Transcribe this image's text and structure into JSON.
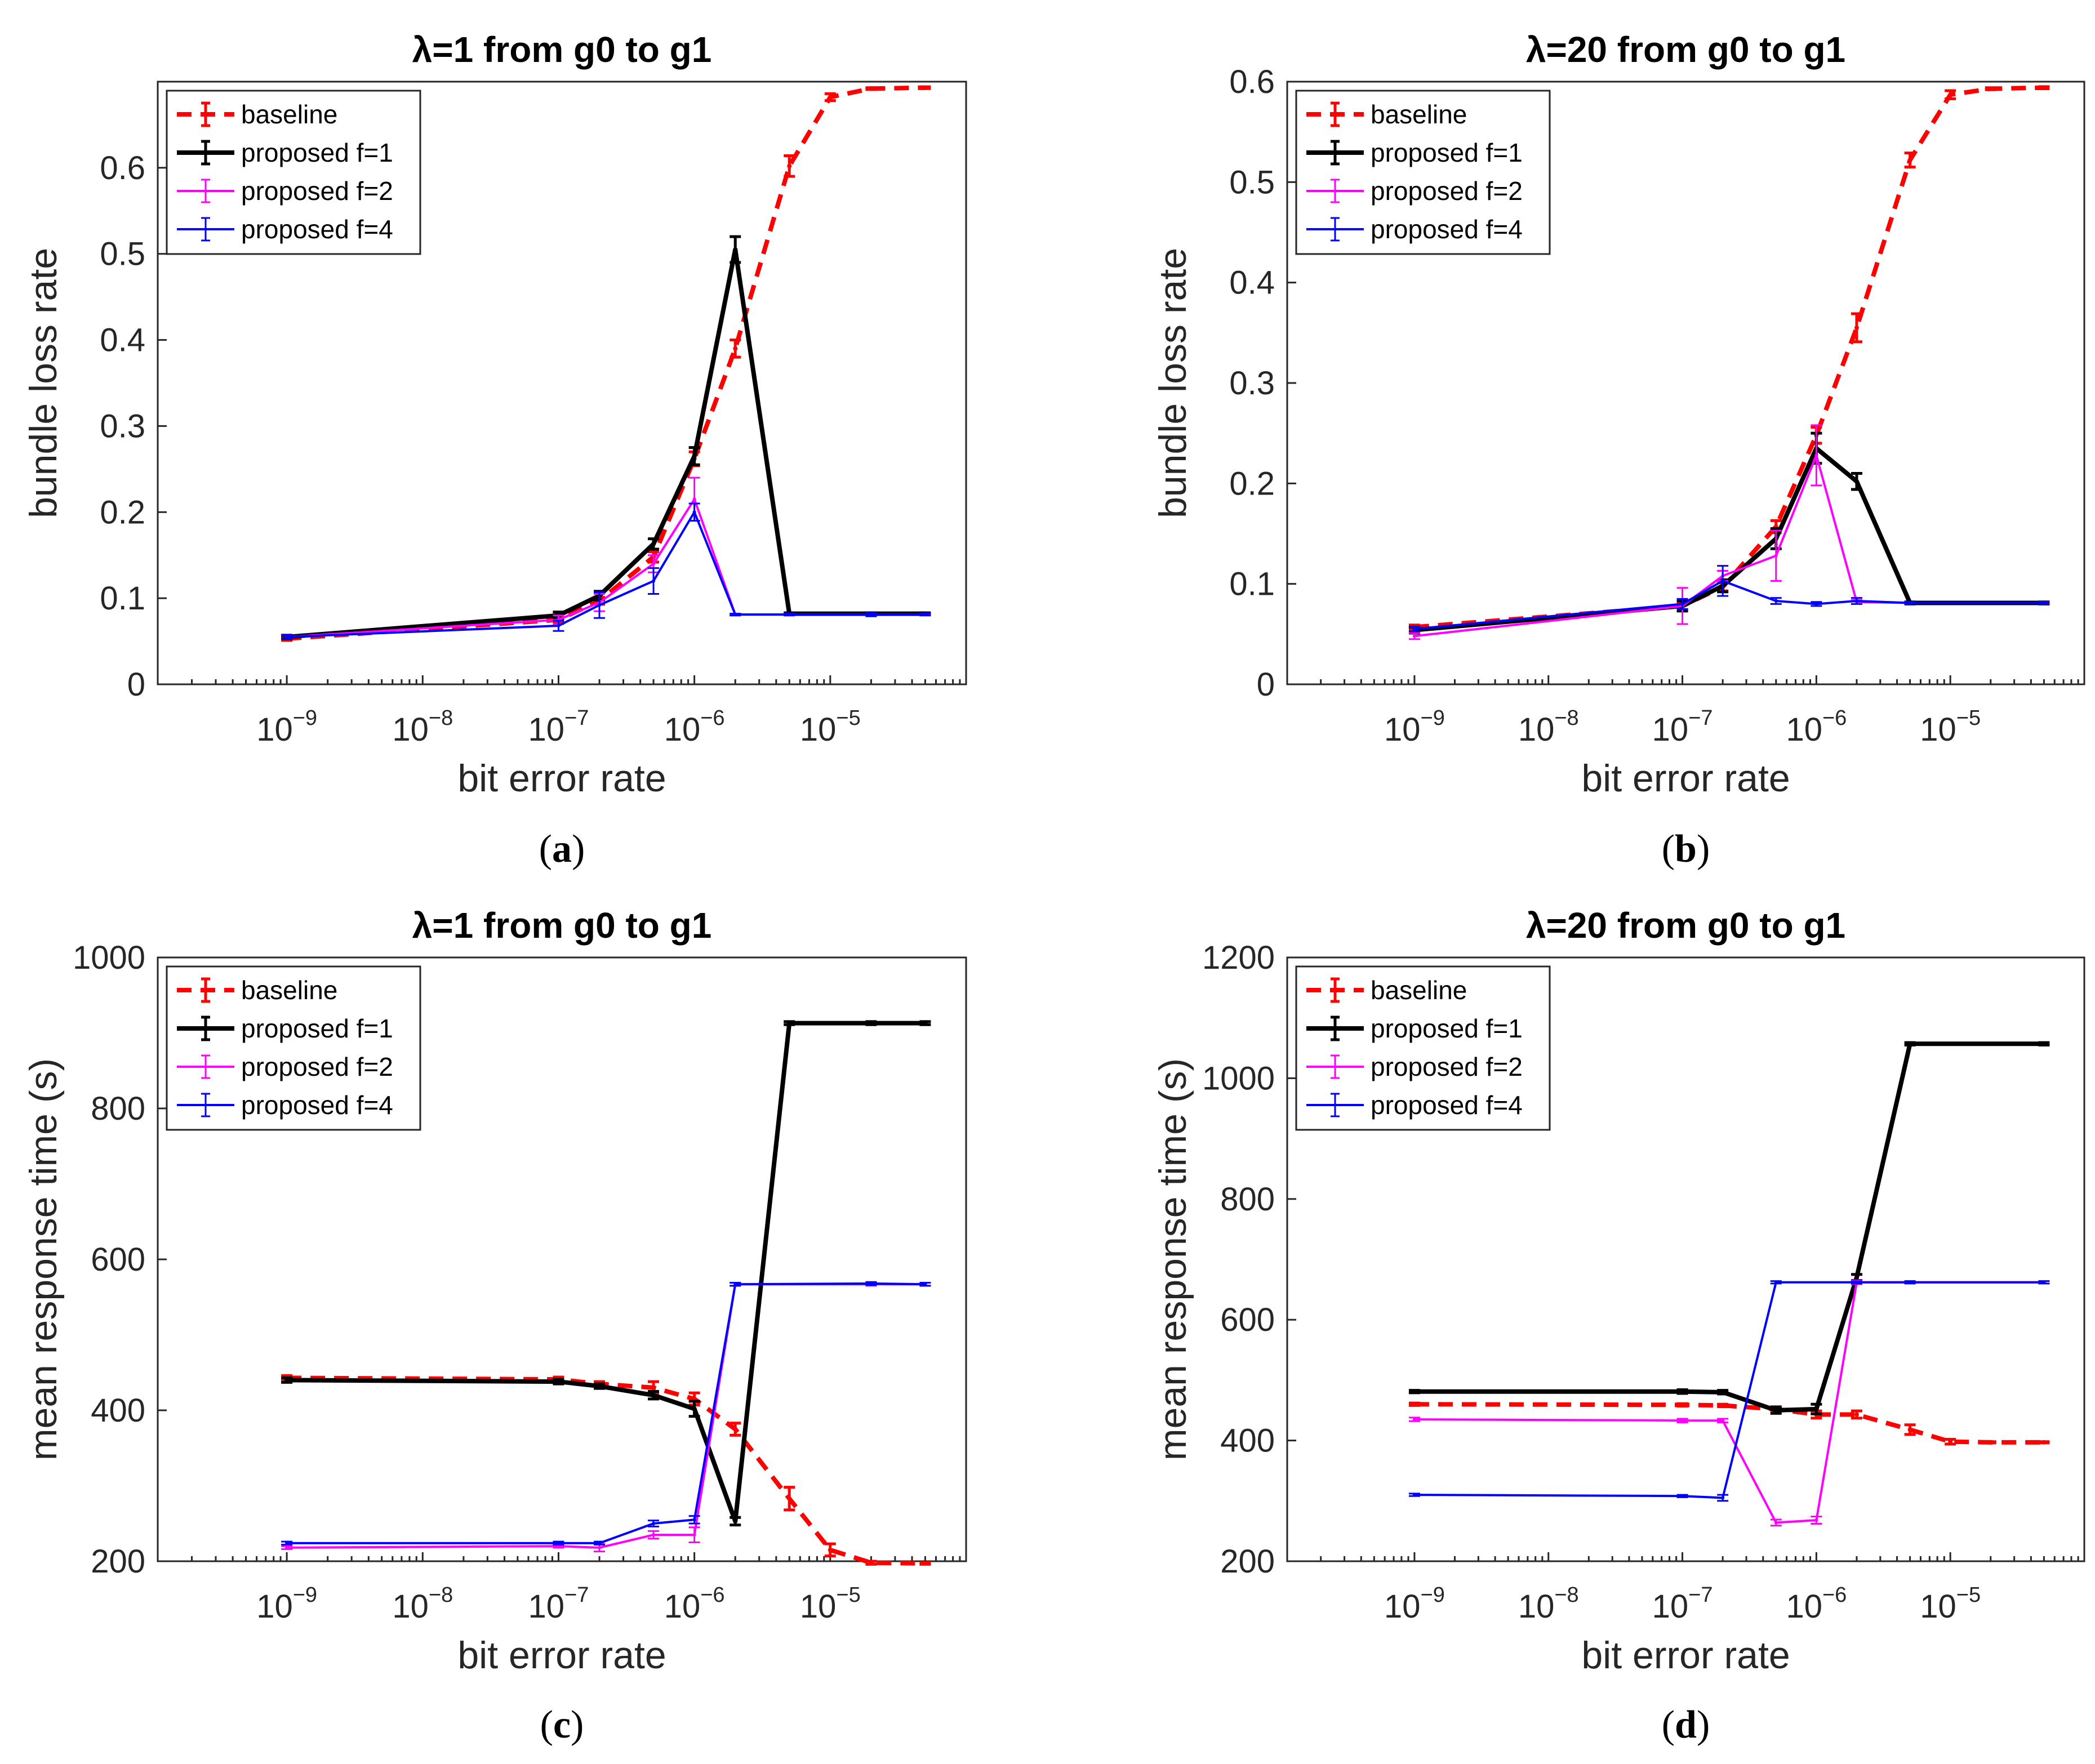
{
  "colors": {
    "baseline": "#ff0000",
    "f1": "#000000",
    "f2": "#ff00ff",
    "f4": "#0000ff"
  },
  "chart_data": [
    {
      "type": "line",
      "caption": "a",
      "title": "λ=1 from g0 to g1",
      "xlabel": "bit error rate",
      "ylabel": "bundle loss rate",
      "xscale": "log",
      "xticks": [
        "-9",
        "-8",
        "-7",
        "-6",
        "-5"
      ],
      "ylim": [
        0,
        0.7
      ],
      "yticks": [
        "0",
        "0.1",
        "0.2",
        "0.3",
        "0.4",
        "0.5",
        "0.6"
      ],
      "legend": [
        "baseline",
        "proposed f=1",
        "proposed f=2",
        "proposed f=4"
      ],
      "legend_position": "top-left",
      "series": [
        {
          "name": "baseline",
          "x": [
            1e-09,
            1e-07,
            2e-07,
            5e-07,
            1e-06,
            2e-06,
            5e-06,
            1e-05,
            2e-05,
            5e-05
          ],
          "y": [
            0.053,
            0.075,
            0.097,
            0.148,
            0.262,
            0.39,
            0.602,
            0.682,
            0.692,
            0.693
          ],
          "err": [
            0.002,
            0.003,
            0.004,
            0.006,
            0.008,
            0.01,
            0.012,
            0.004,
            0.001,
            0.001
          ]
        },
        {
          "name": "proposed f=1",
          "x": [
            1e-09,
            1e-07,
            2e-07,
            5e-07,
            1e-06,
            2e-06,
            5e-06,
            2e-05,
            5e-05
          ],
          "y": [
            0.055,
            0.08,
            0.103,
            0.163,
            0.265,
            0.505,
            0.082,
            0.082,
            0.082
          ],
          "err": [
            0.002,
            0.004,
            0.005,
            0.006,
            0.01,
            0.015,
            0.001,
            0.001,
            0.001
          ]
        },
        {
          "name": "proposed f=2",
          "x": [
            1e-09,
            1e-07,
            2e-07,
            5e-07,
            1e-06,
            2e-06,
            5e-06,
            5e-05
          ],
          "y": [
            0.055,
            0.075,
            0.095,
            0.14,
            0.215,
            0.081,
            0.081,
            0.081
          ],
          "err": [
            0.002,
            0.005,
            0.01,
            0.01,
            0.025,
            0.001,
            0.001,
            0.001
          ]
        },
        {
          "name": "proposed f=4",
          "x": [
            1e-09,
            1e-07,
            2e-07,
            5e-07,
            1e-06,
            2e-06,
            5e-06,
            2e-05,
            5e-05
          ],
          "y": [
            0.055,
            0.068,
            0.092,
            0.12,
            0.2,
            0.081,
            0.081,
            0.081,
            0.081
          ],
          "err": [
            0.002,
            0.006,
            0.015,
            0.015,
            0.01,
            0.001,
            0.001,
            0.002,
            0.001
          ]
        }
      ]
    },
    {
      "type": "line",
      "caption": "b",
      "title": "λ=20 from g0 to g1",
      "xlabel": "bit error rate",
      "ylabel": "bundle loss rate",
      "xscale": "log",
      "xticks": [
        "-9",
        "-8",
        "-7",
        "-6",
        "-5"
      ],
      "ylim": [
        0,
        0.6
      ],
      "yticks": [
        "0",
        "0.1",
        "0.2",
        "0.3",
        "0.4",
        "0.5",
        "0.6"
      ],
      "legend": [
        "baseline",
        "proposed f=1",
        "proposed f=2",
        "proposed f=4"
      ],
      "legend_position": "top-left",
      "series": [
        {
          "name": "baseline",
          "x": [
            1e-09,
            1e-07,
            2e-07,
            5e-07,
            1e-06,
            2e-06,
            5e-06,
            1e-05,
            2e-05,
            5e-05
          ],
          "y": [
            0.057,
            0.078,
            0.097,
            0.157,
            0.248,
            0.355,
            0.522,
            0.587,
            0.593,
            0.594
          ],
          "err": [
            0.002,
            0.004,
            0.004,
            0.006,
            0.008,
            0.014,
            0.007,
            0.004,
            0.001,
            0.001
          ]
        },
        {
          "name": "proposed f=1",
          "x": [
            1e-09,
            1e-07,
            2e-07,
            5e-07,
            1e-06,
            2e-06,
            5e-06,
            5e-05
          ],
          "y": [
            0.054,
            0.078,
            0.098,
            0.145,
            0.235,
            0.202,
            0.081,
            0.081
          ],
          "err": [
            0.003,
            0.005,
            0.006,
            0.01,
            0.015,
            0.008,
            0.001,
            0.001
          ]
        },
        {
          "name": "proposed f=2",
          "x": [
            1e-09,
            1e-07,
            2e-07,
            5e-07,
            1e-06,
            2e-06,
            5e-06,
            5e-05
          ],
          "y": [
            0.048,
            0.078,
            0.108,
            0.128,
            0.228,
            0.082,
            0.081,
            0.081
          ],
          "err": [
            0.003,
            0.018,
            0.005,
            0.025,
            0.03,
            0.002,
            0.001,
            0.001
          ]
        },
        {
          "name": "proposed f=4",
          "x": [
            1e-09,
            1e-07,
            2e-07,
            5e-07,
            1e-06,
            2e-06,
            5e-06,
            5e-05
          ],
          "y": [
            0.055,
            0.08,
            0.103,
            0.083,
            0.08,
            0.083,
            0.081,
            0.081
          ],
          "err": [
            0.002,
            0.005,
            0.015,
            0.003,
            0.002,
            0.003,
            0.001,
            0.001
          ]
        }
      ]
    },
    {
      "type": "line",
      "caption": "c",
      "title": "λ=1 from g0 to g1",
      "xlabel": "bit error rate",
      "ylabel": "mean response time (s)",
      "xscale": "log",
      "xticks": [
        "-9",
        "-8",
        "-7",
        "-6",
        "-5"
      ],
      "ylim": [
        200,
        1000
      ],
      "yticks": [
        "200",
        "400",
        "600",
        "800",
        "1000"
      ],
      "legend": [
        "baseline",
        "proposed f=1",
        "proposed f=2",
        "proposed f=4"
      ],
      "legend_position": "top-left",
      "series": [
        {
          "name": "baseline",
          "x": [
            1e-09,
            1e-07,
            2e-07,
            5e-07,
            1e-06,
            2e-06,
            5e-06,
            1e-05,
            2e-05,
            5e-05
          ],
          "y": [
            443,
            441,
            435,
            430,
            415,
            375,
            283,
            215,
            198,
            197
          ],
          "err": [
            3,
            3,
            3,
            8,
            8,
            8,
            15,
            8,
            2,
            1
          ]
        },
        {
          "name": "proposed f=1",
          "x": [
            1e-09,
            1e-07,
            2e-07,
            5e-07,
            1e-06,
            2e-06,
            5e-06,
            2e-05,
            5e-05
          ],
          "y": [
            440,
            438,
            432,
            420,
            402,
            253,
            913,
            913,
            913
          ],
          "err": [
            3,
            3,
            3,
            5,
            10,
            5,
            2,
            2,
            2
          ]
        },
        {
          "name": "proposed f=2",
          "x": [
            1e-09,
            1e-07,
            2e-07,
            5e-07,
            1e-06,
            2e-06,
            2e-05,
            5e-05
          ],
          "y": [
            218,
            220,
            218,
            235,
            235,
            567,
            567,
            567
          ],
          "err": [
            2,
            2,
            5,
            5,
            10,
            2,
            2,
            2
          ]
        },
        {
          "name": "proposed f=4",
          "x": [
            1e-09,
            1e-07,
            2e-07,
            5e-07,
            1e-06,
            2e-06,
            2e-05,
            5e-05
          ],
          "y": [
            224,
            224,
            224,
            250,
            255,
            567,
            568,
            567
          ],
          "err": [
            2,
            2,
            2,
            4,
            5,
            2,
            2,
            2
          ]
        }
      ]
    },
    {
      "type": "line",
      "caption": "d",
      "title": "λ=20 from g0 to g1",
      "xlabel": "bit error rate",
      "ylabel": "mean response time (s)",
      "xscale": "log",
      "xticks": [
        "-9",
        "-8",
        "-7",
        "-6",
        "-5"
      ],
      "ylim": [
        200,
        1200
      ],
      "yticks": [
        "200",
        "400",
        "600",
        "800",
        "1000",
        "1200"
      ],
      "legend": [
        "baseline",
        "proposed f=1",
        "proposed f=2",
        "proposed f=4"
      ],
      "legend_position": "top-left",
      "series": [
        {
          "name": "baseline",
          "x": [
            1e-09,
            1e-07,
            2e-07,
            5e-07,
            1e-06,
            2e-06,
            5e-06,
            1e-05,
            2e-05,
            5e-05
          ],
          "y": [
            460,
            459,
            458,
            452,
            443,
            443,
            418,
            398,
            397,
            397
          ],
          "err": [
            2,
            2,
            2,
            4,
            6,
            6,
            8,
            4,
            1,
            1
          ]
        },
        {
          "name": "proposed f=1",
          "x": [
            1e-09,
            1e-07,
            2e-07,
            5e-07,
            1e-06,
            2e-06,
            5e-06,
            5e-05
          ],
          "y": [
            481,
            481,
            480,
            450,
            452,
            670,
            1057,
            1057
          ],
          "err": [
            2,
            3,
            3,
            5,
            8,
            5,
            2,
            2
          ]
        },
        {
          "name": "proposed f=2",
          "x": [
            1e-09,
            1e-07,
            2e-07,
            5e-07,
            1e-06,
            2e-06,
            5e-06,
            5e-05
          ],
          "y": [
            435,
            433,
            433,
            264,
            268,
            662,
            662,
            662
          ],
          "err": [
            3,
            3,
            3,
            5,
            6,
            3,
            2,
            2
          ]
        },
        {
          "name": "proposed f=4",
          "x": [
            1e-09,
            1e-07,
            2e-07,
            5e-07,
            2e-06,
            5e-06,
            5e-05
          ],
          "y": [
            310,
            308,
            305,
            662,
            662,
            662,
            662
          ],
          "err": [
            2,
            2,
            5,
            2,
            2,
            2,
            2
          ]
        }
      ]
    }
  ]
}
